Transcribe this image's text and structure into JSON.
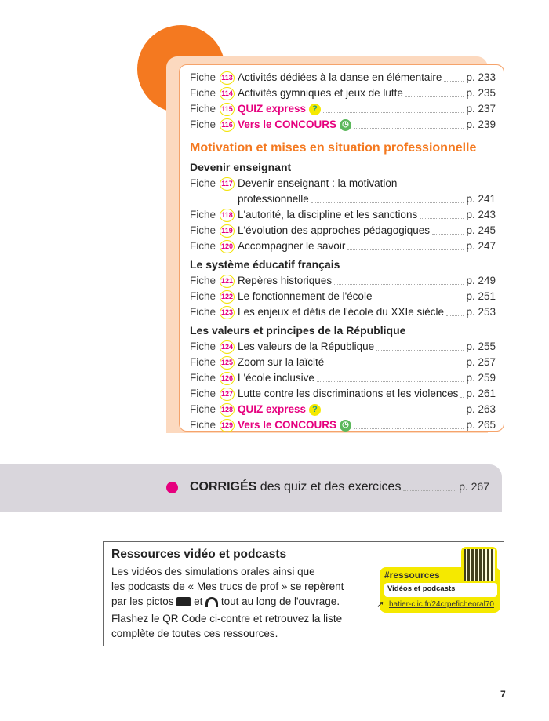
{
  "colors": {
    "accent": "#f47920",
    "pink": "#e6007e",
    "yellow": "#f5e900"
  },
  "top_entries": [
    {
      "label": "Fiche",
      "num": "113",
      "title": "Activités dédiées à la danse en élémentaire",
      "page": "p. 233"
    },
    {
      "label": "Fiche",
      "num": "114",
      "title": "Activités gymniques et jeux de lutte",
      "page": "p. 235"
    },
    {
      "label": "Fiche",
      "num": "115",
      "title": "QUIZ express",
      "page": "p. 237",
      "icon": "quiz-icon"
    },
    {
      "label": "Fiche",
      "num": "116",
      "title": "Vers le CONCOURS",
      "page": "p. 239",
      "icon": "clock-icon"
    }
  ],
  "section_title": "Motivation et mises en situation professionnelle",
  "groups": [
    {
      "title": "Devenir enseignant",
      "entries": [
        {
          "label": "Fiche",
          "num": "117",
          "title": "Devenir enseignant : la motivation",
          "title2": "professionnelle",
          "page": "p. 241"
        },
        {
          "label": "Fiche",
          "num": "118",
          "title": "L'autorité, la discipline et les sanctions",
          "page": "p. 243"
        },
        {
          "label": "Fiche",
          "num": "119",
          "title": "L'évolution des approches pédagogiques",
          "page": "p. 245"
        },
        {
          "label": "Fiche",
          "num": "120",
          "title": "Accompagner le savoir",
          "page": "p. 247"
        }
      ]
    },
    {
      "title": "Le système éducatif français",
      "entries": [
        {
          "label": "Fiche",
          "num": "121",
          "title": "Repères historiques",
          "page": "p. 249"
        },
        {
          "label": "Fiche",
          "num": "122",
          "title": "Le fonctionnement de l'école",
          "page": "p. 251"
        },
        {
          "label": "Fiche",
          "num": "123",
          "title": "Les enjeux et défis de l'école du XXIe siècle",
          "page": "p. 253"
        }
      ]
    },
    {
      "title": "Les valeurs et principes de la République",
      "entries": [
        {
          "label": "Fiche",
          "num": "124",
          "title": "Les valeurs de la République",
          "page": "p. 255"
        },
        {
          "label": "Fiche",
          "num": "125",
          "title": "Zoom sur la laïcité",
          "page": "p. 257"
        },
        {
          "label": "Fiche",
          "num": "126",
          "title": "L'école inclusive",
          "page": "p. 259"
        },
        {
          "label": "Fiche",
          "num": "127",
          "title": "Lutte contre les discriminations et les violences",
          "page": "p. 261"
        },
        {
          "label": "Fiche",
          "num": "128",
          "title": "QUIZ express",
          "page": "p. 263",
          "icon": "quiz-icon"
        },
        {
          "label": "Fiche",
          "num": "129",
          "title": "Vers le CONCOURS",
          "page": "p. 265",
          "icon": "clock-icon"
        }
      ]
    }
  ],
  "corriges": {
    "bold": "CORRIGÉS",
    "rest": " des quiz et des exercices",
    "page": "p. 267"
  },
  "resources": {
    "title": "Ressources vidéo et podcasts",
    "line1": "Les vidéos des simulations orales ainsi que",
    "line2": "les podcasts de « Mes trucs de prof » se repèrent",
    "line3a": "par les pictos",
    "line3b": "et",
    "line3c": "tout au long de l'ouvrage.",
    "line4": "Flashez le QR Code ci-contre et retrouvez la liste",
    "line5": "complète de toutes ces ressources.",
    "tag": "#ressources",
    "tag_sub": "Vidéos et podcasts",
    "url": "hatier-clic.fr/24crpeficheoral70"
  },
  "page_number": "7"
}
